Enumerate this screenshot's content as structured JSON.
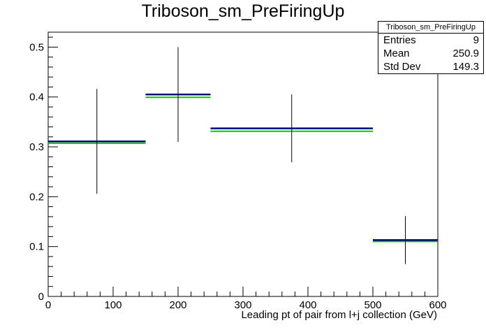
{
  "chart_data": {
    "type": "histogram",
    "title": "Triboson_sm_PreFiringUp",
    "xlabel": "Leading pt of pair from l+j collection (GeV)",
    "ylabel": "",
    "xlim": [
      0,
      600
    ],
    "ylim": [
      0,
      0.53
    ],
    "xticks": [
      0,
      100,
      200,
      300,
      400,
      500,
      600
    ],
    "yticks": [
      0,
      0.1,
      0.2,
      0.3,
      0.4,
      0.5
    ],
    "bins": [
      {
        "x_low": 0,
        "x_high": 150,
        "value": 0.311,
        "error": 0.105,
        "alt_value": 0.31
      },
      {
        "x_low": 150,
        "x_high": 250,
        "value": 0.405,
        "error": 0.095,
        "alt_value": 0.402
      },
      {
        "x_low": 250,
        "x_high": 500,
        "value": 0.337,
        "error": 0.068,
        "alt_value": 0.334
      },
      {
        "x_low": 500,
        "x_high": 600,
        "value": 0.113,
        "error": 0.048,
        "alt_value": 0.113
      }
    ],
    "colors": {
      "main": "#000080",
      "alt": "#00cc00",
      "error": "#000000"
    },
    "grid": false,
    "legend": "none",
    "stats_box": {
      "title": "Triboson_sm_PreFiringUp",
      "rows": [
        {
          "label": "Entries",
          "value": "9"
        },
        {
          "label": "Mean",
          "value": "250.9"
        },
        {
          "label": "Std Dev",
          "value": "149.3"
        }
      ]
    }
  }
}
